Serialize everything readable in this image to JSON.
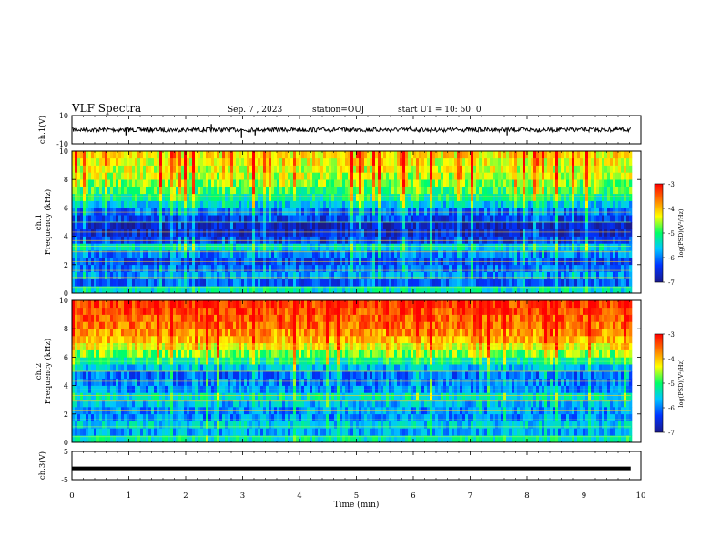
{
  "header": {
    "title": "VLF Spectra",
    "date": "Sep. 7 , 2023",
    "station": "station=OUJ",
    "start_ut": "start UT =  10: 50: 0"
  },
  "colorbar": {
    "ticks": [
      "-3",
      "-4",
      "-5",
      "-6",
      "-7"
    ],
    "label": "log(PSD)(V²/Hz)",
    "colors": [
      "#1a1a8c",
      "#0033ff",
      "#00c8ff",
      "#00ff66",
      "#ffff00",
      "#ff7f00",
      "#ff0000"
    ]
  },
  "chart_data": [
    {
      "type": "line",
      "name": "ch1-waveform",
      "ylabel": "ch.1(V)",
      "ylim": [
        -10,
        10
      ],
      "y_ticks": [
        "10",
        "-10"
      ],
      "xlim": [
        0,
        10
      ],
      "baseline": 0,
      "spikes": [
        {
          "x": 0.95,
          "y": -4
        },
        {
          "x": 2.45,
          "y": 4
        },
        {
          "x": 2.98,
          "y": -6
        },
        {
          "x": 3.22,
          "y": -4
        },
        {
          "x": 5.95,
          "y": 3
        },
        {
          "x": 7.65,
          "y": -4
        }
      ]
    },
    {
      "type": "heatmap",
      "name": "ch1-spectrogram",
      "ylabel": "ch.1 Frequency (kHz)",
      "ylim": [
        0,
        10
      ],
      "y_ticks": [
        "0",
        "2",
        "4",
        "6",
        "8",
        "10"
      ],
      "xlim": [
        0,
        10
      ],
      "z_range": [
        -7,
        -3
      ],
      "rows_khz": [
        0,
        0.5,
        1,
        1.5,
        2,
        2.5,
        3,
        3.5,
        4,
        4.5,
        5,
        5.5,
        6,
        6.5,
        7,
        7.5,
        8,
        8.5,
        9,
        9.5
      ],
      "row_levels": [
        -5.4,
        -6.2,
        -5.9,
        -6.1,
        -6.3,
        -6.0,
        -5.5,
        -6.4,
        -6.6,
        -6.7,
        -6.4,
        -6.1,
        -5.6,
        -5.2,
        -4.9,
        -4.7,
        -4.5,
        -4.4,
        -4.3,
        -4.2
      ]
    },
    {
      "type": "heatmap",
      "name": "ch2-spectrogram",
      "ylabel": "ch.2 Frequency (kHz)",
      "ylim": [
        0,
        10
      ],
      "y_ticks": [
        "0",
        "2",
        "4",
        "6",
        "8",
        "10"
      ],
      "xlim": [
        0,
        10
      ],
      "z_range": [
        -7,
        -3
      ],
      "rows_khz": [
        0,
        0.5,
        1,
        1.5,
        2,
        2.5,
        3,
        3.5,
        4,
        4.5,
        5,
        5.5,
        6,
        6.5,
        7,
        7.5,
        8,
        8.5,
        9,
        9.5
      ],
      "row_levels": [
        -5.3,
        -5.8,
        -5.6,
        -5.9,
        -5.9,
        -5.7,
        -5.4,
        -5.9,
        -6.0,
        -6.1,
        -5.7,
        -5.2,
        -4.7,
        -4.3,
        -4.0,
        -3.8,
        -3.6,
        -3.5,
        -3.4,
        -3.3
      ]
    },
    {
      "type": "line",
      "name": "ch3-trace",
      "ylabel": "ch.3(V)",
      "ylim": [
        -5,
        5
      ],
      "y_ticks": [
        "5",
        "-5"
      ],
      "xlim": [
        0,
        10
      ],
      "level": -1
    }
  ],
  "xaxis": {
    "label": "Time (min)",
    "ticks": [
      "0",
      "1",
      "2",
      "3",
      "4",
      "5",
      "6",
      "7",
      "8",
      "9",
      "10"
    ],
    "range": [
      0,
      10
    ],
    "data_end": 9.82
  }
}
